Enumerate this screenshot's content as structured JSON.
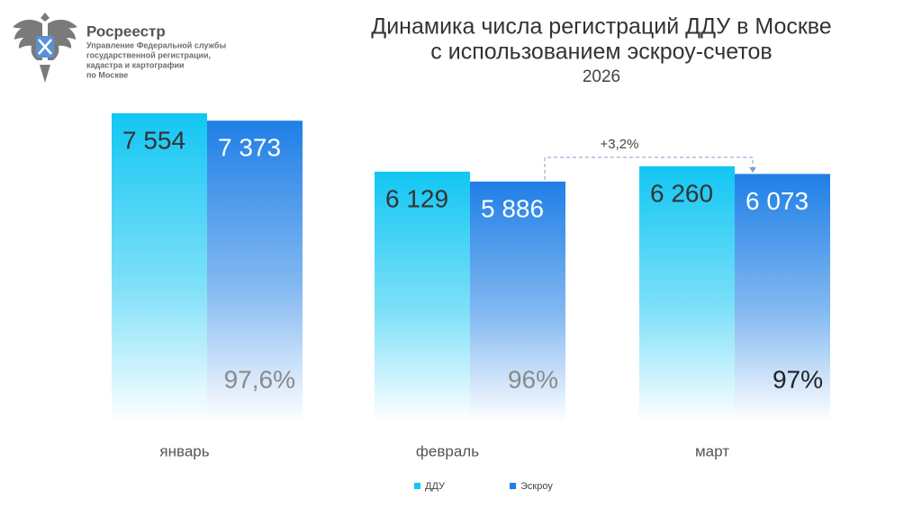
{
  "header": {
    "brand": "Росреестр",
    "org_lines": [
      "Управление Федеральной службы",
      "государственной регистрации,",
      "кадастра и картографии",
      "по Москве"
    ]
  },
  "chart_data": {
    "type": "bar",
    "title_lines": [
      "Динамика числа регистраций ДДУ в Москве",
      "с использованием эскроу-счетов"
    ],
    "subtitle": "2026",
    "categories": [
      "январь",
      "февраль",
      "март"
    ],
    "series": [
      {
        "name": "ДДУ",
        "color": "#12c6f3",
        "values": [
          7554,
          6129,
          6260
        ],
        "value_labels": [
          "7 554",
          "6 129",
          "6 260"
        ]
      },
      {
        "name": "Эскроу",
        "color": "#1f7fe6",
        "values": [
          7373,
          5886,
          6073
        ],
        "value_labels": [
          "7 373",
          "5 886",
          "6 073"
        ]
      }
    ],
    "share_labels": [
      "97,6%",
      "96%",
      "97%"
    ],
    "share_label_colors": [
      "#8a8a8a",
      "#8a8a8a",
      "#222222"
    ],
    "annotation": "+3,2%",
    "legend": "bottom"
  }
}
